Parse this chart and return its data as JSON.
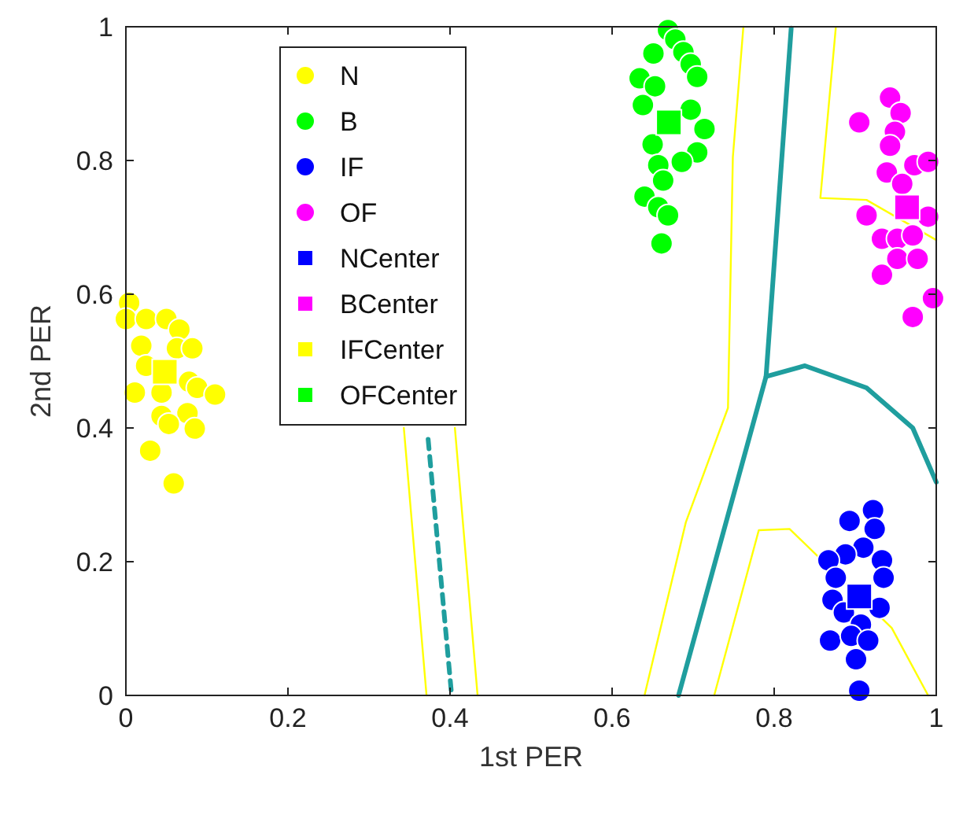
{
  "chart_data": {
    "type": "scatter",
    "xlabel": "1st PER",
    "ylabel": "2nd PER",
    "xlim": [
      0,
      1
    ],
    "ylim": [
      0,
      1
    ],
    "xticks": [
      0,
      0.2,
      0.4,
      0.6,
      0.8,
      1
    ],
    "yticks": [
      0,
      0.2,
      0.4,
      0.6,
      0.8,
      1
    ],
    "grid": false,
    "legend": "top left",
    "series": [
      {
        "type": "line",
        "color": "#ffff00",
        "marker": "none",
        "line_style": "solid",
        "x": [
          0.343,
          0.371
        ],
        "values": [
          0.4,
          0
        ]
      },
      {
        "type": "line",
        "color": "#ffff00",
        "marker": "none",
        "line_style": "solid",
        "x": [
          0.406,
          0.434
        ],
        "values": [
          0.4,
          0
        ]
      },
      {
        "type": "line",
        "color": "#ffff00",
        "marker": "none",
        "line_style": "solid",
        "x": [
          0.64,
          0.691,
          0.743,
          0.749,
          0.762
        ],
        "values": [
          0,
          0.259,
          0.43,
          0.805,
          1
        ]
      },
      {
        "type": "line",
        "color": "#ffff00",
        "marker": "none",
        "line_style": "solid",
        "x": [
          0.726,
          0.781,
          0.819,
          0.945,
          0.99
        ],
        "values": [
          0,
          0.247,
          0.249,
          0.101,
          0
        ]
      },
      {
        "type": "line",
        "color": "#ffff00",
        "marker": "none",
        "line_style": "solid",
        "x": [
          0.876,
          0.857,
          0.914,
          1.0
        ],
        "values": [
          0.998,
          0.744,
          0.741,
          0.681
        ]
      },
      {
        "type": "line",
        "color": "#1f9e9e",
        "marker": "none",
        "line_style": "dashed",
        "x": [
          0.373,
          0.402
        ],
        "values": [
          0.383,
          0
        ]
      },
      {
        "type": "line",
        "color": "#1f9e9e",
        "marker": "none",
        "line_style": "solid",
        "x": [
          0.682,
          0.79,
          0.821
        ],
        "values": [
          0,
          0.477,
          0.998
        ]
      },
      {
        "type": "line",
        "color": "#1f9e9e",
        "marker": "none",
        "line_style": "solid",
        "x": [
          0.79,
          0.838,
          0.914,
          0.971,
          1.0
        ],
        "values": [
          0.477,
          0.493,
          0.46,
          0.4,
          0.319
        ]
      },
      {
        "name": "N",
        "color": "#ffff00",
        "marker": "circle",
        "x": [
          0.004,
          0,
          0.025,
          0.05,
          0.066,
          0.019,
          0.063,
          0.082,
          0.025,
          0.078,
          0.088,
          0.011,
          0.044,
          0.044,
          0.076,
          0.085,
          0.053,
          0.03,
          0.059,
          0.11
        ],
        "values": [
          0.587,
          0.563,
          0.563,
          0.563,
          0.547,
          0.523,
          0.519,
          0.519,
          0.493,
          0.469,
          0.46,
          0.453,
          0.453,
          0.418,
          0.422,
          0.399,
          0.406,
          0.366,
          0.317,
          0.45
        ]
      },
      {
        "name": "B",
        "color": "#00ff00",
        "marker": "circle",
        "x": [
          0.669,
          0.678,
          0.651,
          0.688,
          0.697,
          0.634,
          0.705,
          0.653,
          0.638,
          0.697,
          0.714,
          0.65,
          0.705,
          0.686,
          0.657,
          0.663,
          0.64,
          0.657,
          0.669,
          0.661
        ],
        "values": [
          0.995,
          0.981,
          0.96,
          0.962,
          0.944,
          0.923,
          0.925,
          0.911,
          0.883,
          0.876,
          0.847,
          0.824,
          0.812,
          0.798,
          0.793,
          0.77,
          0.746,
          0.73,
          0.718,
          0.676
        ]
      },
      {
        "name": "IF",
        "color": "#0000ff",
        "marker": "circle",
        "x": [
          0.922,
          0.893,
          0.924,
          0.91,
          0.888,
          0.933,
          0.867,
          0.876,
          0.935,
          0.872,
          0.93,
          0.886,
          0.907,
          0.869,
          0.895,
          0.916,
          0.901,
          0.905
        ],
        "values": [
          0.277,
          0.261,
          0.249,
          0.221,
          0.211,
          0.202,
          0.202,
          0.176,
          0.176,
          0.143,
          0.131,
          0.124,
          0.106,
          0.082,
          0.089,
          0.082,
          0.054,
          0.007
        ]
      },
      {
        "name": "OF",
        "color": "#ff00ff",
        "marker": "circle",
        "x": [
          0.943,
          0.956,
          0.905,
          0.949,
          0.943,
          0.973,
          0.939,
          0.99,
          0.958,
          0.914,
          0.99,
          0.933,
          0.952,
          0.971,
          0.952,
          0.977,
          0.933,
          0.996,
          0.971
        ],
        "values": [
          0.894,
          0.871,
          0.857,
          0.843,
          0.822,
          0.793,
          0.782,
          0.798,
          0.765,
          0.718,
          0.716,
          0.683,
          0.683,
          0.688,
          0.653,
          0.653,
          0.629,
          0.594,
          0.566
        ]
      },
      {
        "name": "NCenter",
        "color": "#0000ff",
        "marker": "square",
        "x": [
          0.905
        ],
        "values": [
          0.148
        ]
      },
      {
        "name": "BCenter",
        "color": "#ff00ff",
        "marker": "square",
        "x": [
          0.964
        ],
        "values": [
          0.73
        ]
      },
      {
        "name": "IFCenter",
        "color": "#ffff00",
        "marker": "square",
        "x": [
          0.048
        ],
        "values": [
          0.484
        ]
      },
      {
        "name": "OFCenter",
        "color": "#00ff00",
        "marker": "square",
        "x": [
          0.67
        ],
        "values": [
          0.857
        ]
      }
    ]
  }
}
